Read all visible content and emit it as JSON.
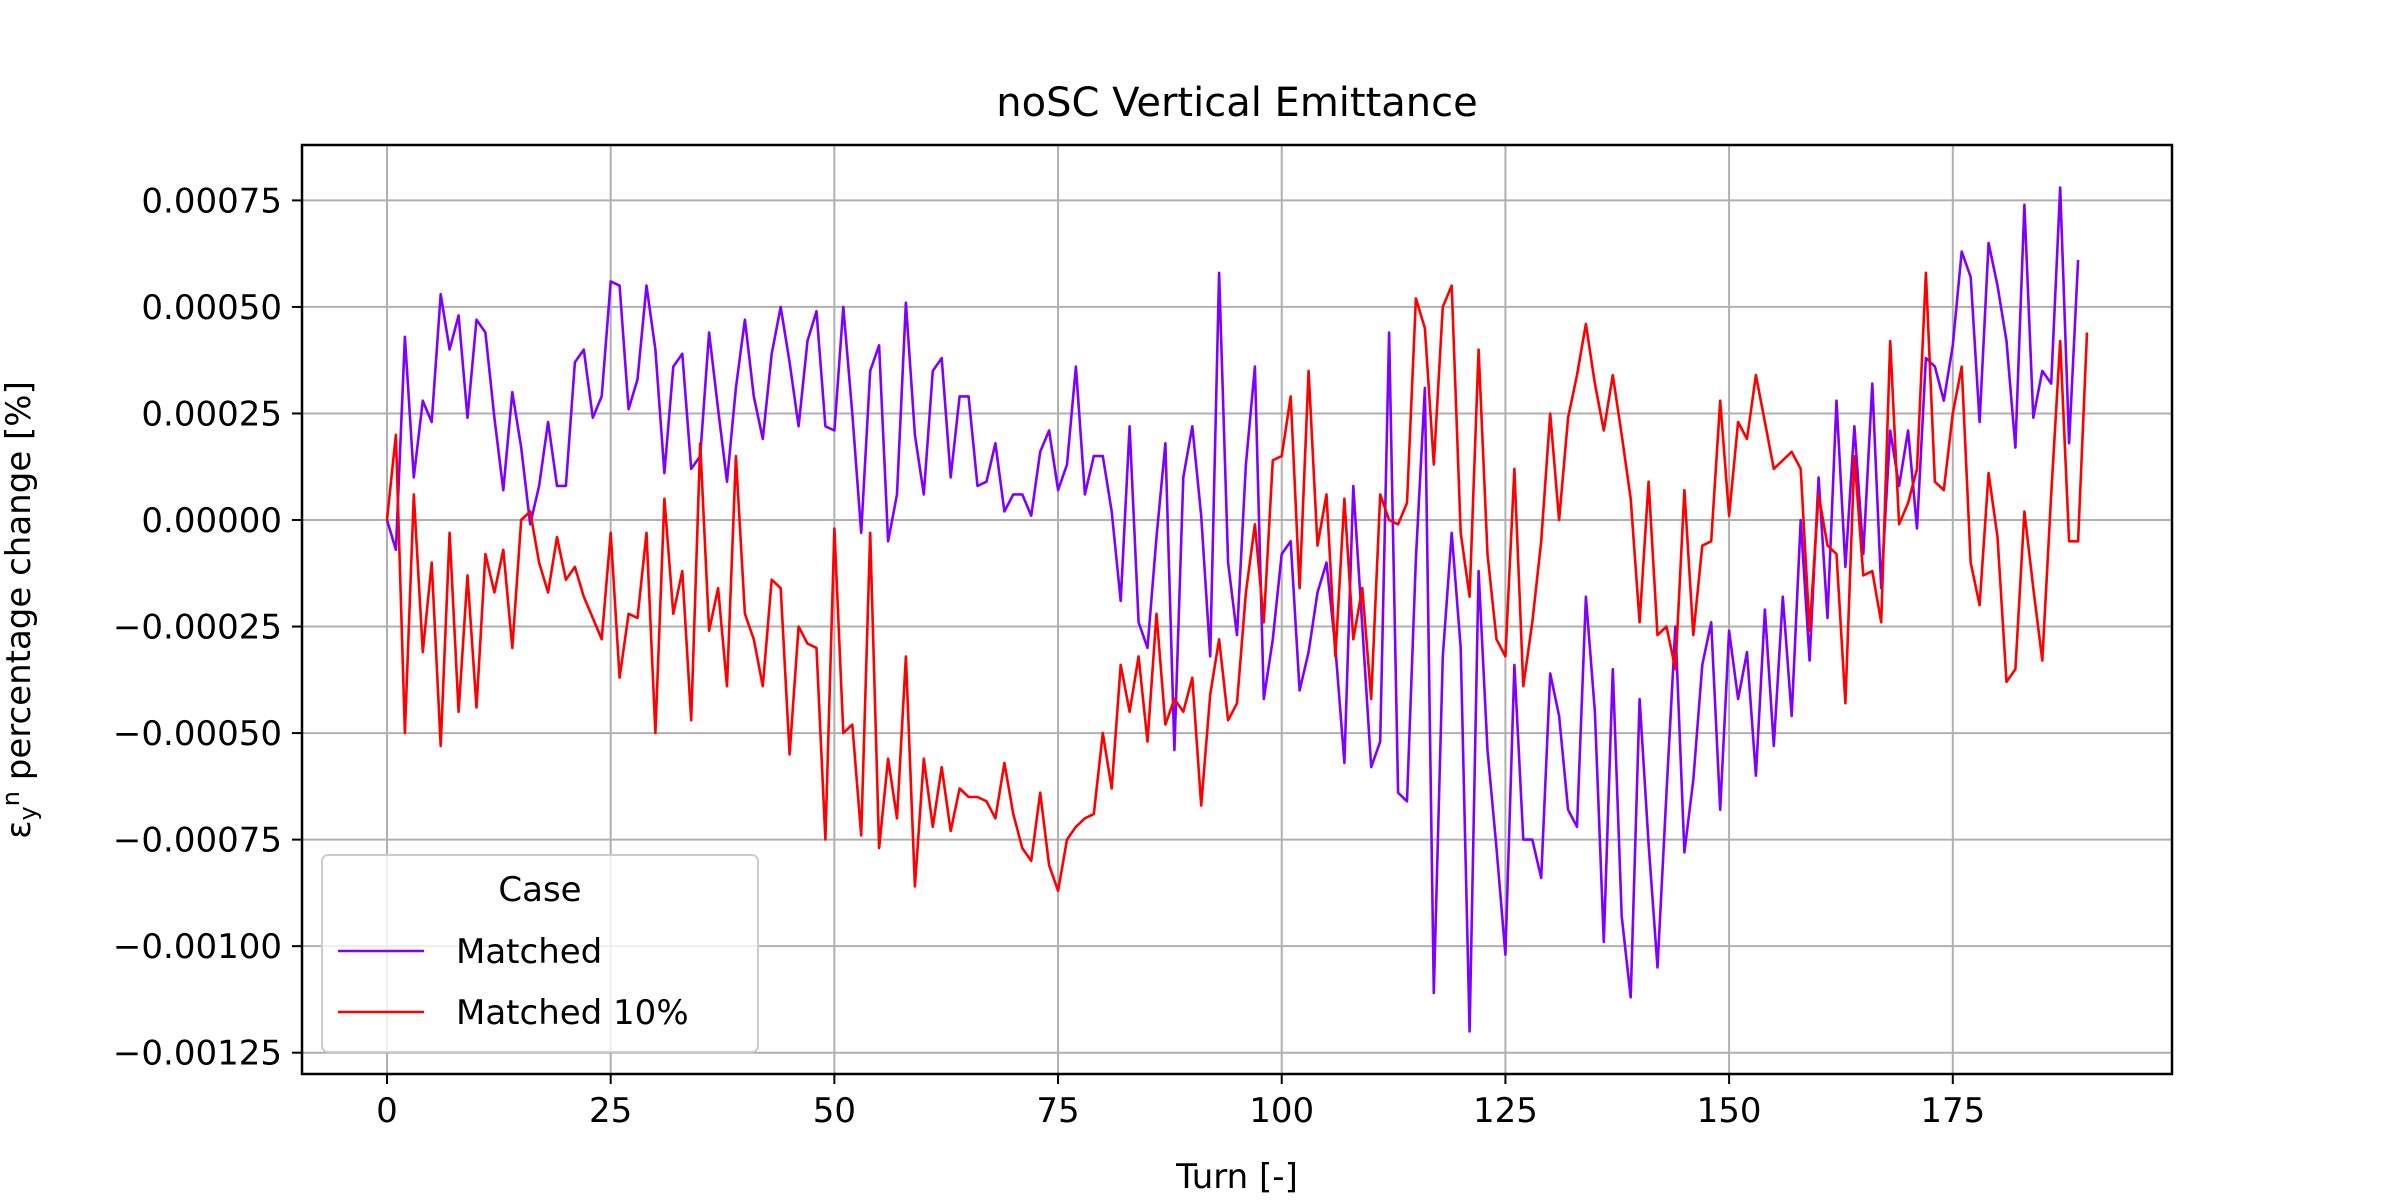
{
  "chart_data": {
    "type": "line",
    "title": "noSC Vertical Emittance",
    "xlabel": "Turn [-]",
    "ylabel_symbol": "ε",
    "ylabel_sub": "y",
    "ylabel_sup": "n",
    "ylabel_rest": " percentage change [%]",
    "xlim": [
      -9.5,
      199.5
    ],
    "ylim": [
      -0.0013,
      0.00088
    ],
    "xticks": [
      0,
      25,
      50,
      75,
      100,
      125,
      150,
      175
    ],
    "xtick_labels": [
      "0",
      "25",
      "50",
      "75",
      "100",
      "125",
      "150",
      "175"
    ],
    "yticks": [
      0.00075,
      0.0005,
      0.00025,
      0,
      -0.00025,
      -0.0005,
      -0.00075,
      -0.001,
      -0.00125
    ],
    "ytick_labels": [
      "0.00075",
      "0.00050",
      "0.00025",
      "0.00000",
      "−0.00025",
      "−0.00050",
      "−0.00075",
      "−0.00100",
      "−0.00125"
    ],
    "grid": true,
    "legend": {
      "title": "Case",
      "placement": "lower-left"
    },
    "series": [
      {
        "name": "Matched",
        "color": "#7f00ff",
        "values": [
          0,
          -7e-05,
          0.00043,
          0.0001,
          0.00028,
          0.00023,
          0.00053,
          0.0004,
          0.00048,
          0.00024,
          0.00047,
          0.00044,
          0.00024,
          7e-05,
          0.0003,
          0.00017,
          -1e-05,
          8e-05,
          0.00023,
          8e-05,
          8e-05,
          0.00037,
          0.0004,
          0.00024,
          0.00029,
          0.00056,
          0.00055,
          0.00026,
          0.00033,
          0.00055,
          0.0004,
          0.00011,
          0.00036,
          0.00039,
          0.00012,
          0.00015,
          0.00044,
          0.00026,
          9e-05,
          0.00031,
          0.00047,
          0.00029,
          0.00019,
          0.00039,
          0.0005,
          0.00037,
          0.00022,
          0.00042,
          0.00049,
          0.00022,
          0.00021,
          0.0005,
          0.00025,
          -3e-05,
          0.00035,
          0.00041,
          -5e-05,
          6e-05,
          0.00051,
          0.0002,
          6e-05,
          0.00035,
          0.00038,
          0.0001,
          0.00029,
          0.00029,
          8e-05,
          9e-05,
          0.00018,
          2e-05,
          6e-05,
          6e-05,
          1e-05,
          0.00016,
          0.00021,
          7e-05,
          0.00013,
          0.00036,
          6e-05,
          0.00015,
          0.00015,
          2e-05,
          -0.00019,
          0.00022,
          -0.00024,
          -0.0003,
          -4e-05,
          0.00018,
          -0.00054,
          0.0001,
          0.00022,
          1e-05,
          -0.00032,
          0.00058,
          -0.0001,
          -0.00027,
          0.00013,
          0.00036,
          -0.00042,
          -0.00028,
          -8e-05,
          -5e-05,
          -0.0004,
          -0.00031,
          -0.00017,
          -0.0001,
          -0.0003,
          -0.00057,
          8e-05,
          -0.00025,
          -0.00058,
          -0.00052,
          0.00044,
          -0.00064,
          -0.00066,
          -9e-05,
          0.00031,
          -0.00111,
          -0.00032,
          -3e-05,
          -0.0003,
          -0.0012,
          -0.00012,
          -0.00054,
          -0.00077,
          -0.00102,
          -0.00034,
          -0.00075,
          -0.00075,
          -0.00084,
          -0.00036,
          -0.00046,
          -0.00068,
          -0.00072,
          -0.00018,
          -0.00045,
          -0.00099,
          -0.00035,
          -0.00093,
          -0.00112,
          -0.00042,
          -0.00076,
          -0.00105,
          -0.00064,
          -0.00025,
          -0.00078,
          -0.00061,
          -0.00034,
          -0.00024,
          -0.00068,
          -0.00026,
          -0.00042,
          -0.00031,
          -0.0006,
          -0.00021,
          -0.00053,
          -0.00018,
          -0.00046,
          0,
          -0.00033,
          0.0001,
          -0.00023,
          0.00028,
          -0.00011,
          0.00022,
          -8e-05,
          0.00032,
          -0.00016,
          0.00021,
          8e-05,
          0.00021,
          -2e-05,
          0.00038,
          0.00036,
          0.00028,
          0.00041,
          0.00063,
          0.00057,
          0.00023,
          0.00065,
          0.00055,
          0.00042,
          0.00017,
          0.00074,
          0.00024,
          0.00035,
          0.00032,
          0.00078,
          0.00018,
          0.00061
        ]
      },
      {
        "name": "Matched 10%",
        "color": "#ff0000",
        "values": [
          0,
          0.0002,
          -0.0005,
          6e-05,
          -0.00031,
          -0.0001,
          -0.00053,
          -3e-05,
          -0.00045,
          -0.00013,
          -0.00044,
          -8e-05,
          -0.00017,
          -7e-05,
          -0.0003,
          0,
          2e-05,
          -0.0001,
          -0.00017,
          -4e-05,
          -0.00014,
          -0.00011,
          -0.00018,
          -0.00023,
          -0.00028,
          -3e-05,
          -0.00037,
          -0.00022,
          -0.00023,
          -3e-05,
          -0.0005,
          5e-05,
          -0.00022,
          -0.00012,
          -0.00047,
          0.00018,
          -0.00026,
          -0.00016,
          -0.00039,
          0.00015,
          -0.00022,
          -0.00028,
          -0.00039,
          -0.00014,
          -0.00016,
          -0.00055,
          -0.00025,
          -0.00029,
          -0.0003,
          -0.00075,
          -2e-05,
          -0.0005,
          -0.00048,
          -0.00074,
          -3e-05,
          -0.00077,
          -0.00056,
          -0.0007,
          -0.00032,
          -0.00086,
          -0.00056,
          -0.00072,
          -0.00058,
          -0.00073,
          -0.00063,
          -0.00065,
          -0.00065,
          -0.00066,
          -0.0007,
          -0.00057,
          -0.00069,
          -0.00077,
          -0.0008,
          -0.00064,
          -0.00081,
          -0.00087,
          -0.00075,
          -0.00072,
          -0.0007,
          -0.00069,
          -0.0005,
          -0.00063,
          -0.00034,
          -0.00045,
          -0.00032,
          -0.00052,
          -0.00022,
          -0.00048,
          -0.00042,
          -0.00045,
          -0.00037,
          -0.00067,
          -0.00041,
          -0.00028,
          -0.00047,
          -0.00043,
          -0.00017,
          -1e-05,
          -0.00024,
          0.00014,
          0.00015,
          0.00029,
          -0.00016,
          0.00035,
          -6e-05,
          6e-05,
          -0.00032,
          5e-05,
          -0.00028,
          -0.00016,
          -0.00042,
          6e-05,
          0,
          -1e-05,
          4e-05,
          0.00052,
          0.00045,
          0.00013,
          0.0005,
          0.00055,
          -3e-05,
          -0.00018,
          0.0004,
          -8e-05,
          -0.00028,
          -0.00032,
          0.00012,
          -0.00039,
          -0.00024,
          -5e-05,
          0.00025,
          0,
          0.00024,
          0.00034,
          0.00046,
          0.00032,
          0.00021,
          0.00034,
          0.0002,
          5e-05,
          -0.00024,
          9e-05,
          -0.00027,
          -0.00025,
          -0.00035,
          7e-05,
          -0.00027,
          -6e-05,
          -5e-05,
          0.00028,
          1e-05,
          0.00023,
          0.00019,
          0.00034,
          0.00023,
          0.00012,
          0.00014,
          0.00016,
          0.00012,
          -0.00026,
          6e-05,
          -6e-05,
          -8e-05,
          -0.00043,
          0.00015,
          -0.00013,
          -0.00012,
          -0.00024,
          0.00042,
          -1e-05,
          4e-05,
          0.00012,
          0.00058,
          9e-05,
          7e-05,
          0.00025,
          0.00036,
          -0.0001,
          -0.0002,
          0.00011,
          -4e-05,
          -0.00038,
          -0.00035,
          2e-05,
          -0.00016,
          -0.00033,
          6e-05,
          0.00042,
          -5e-05,
          -5e-05,
          0.00044
        ]
      }
    ]
  }
}
